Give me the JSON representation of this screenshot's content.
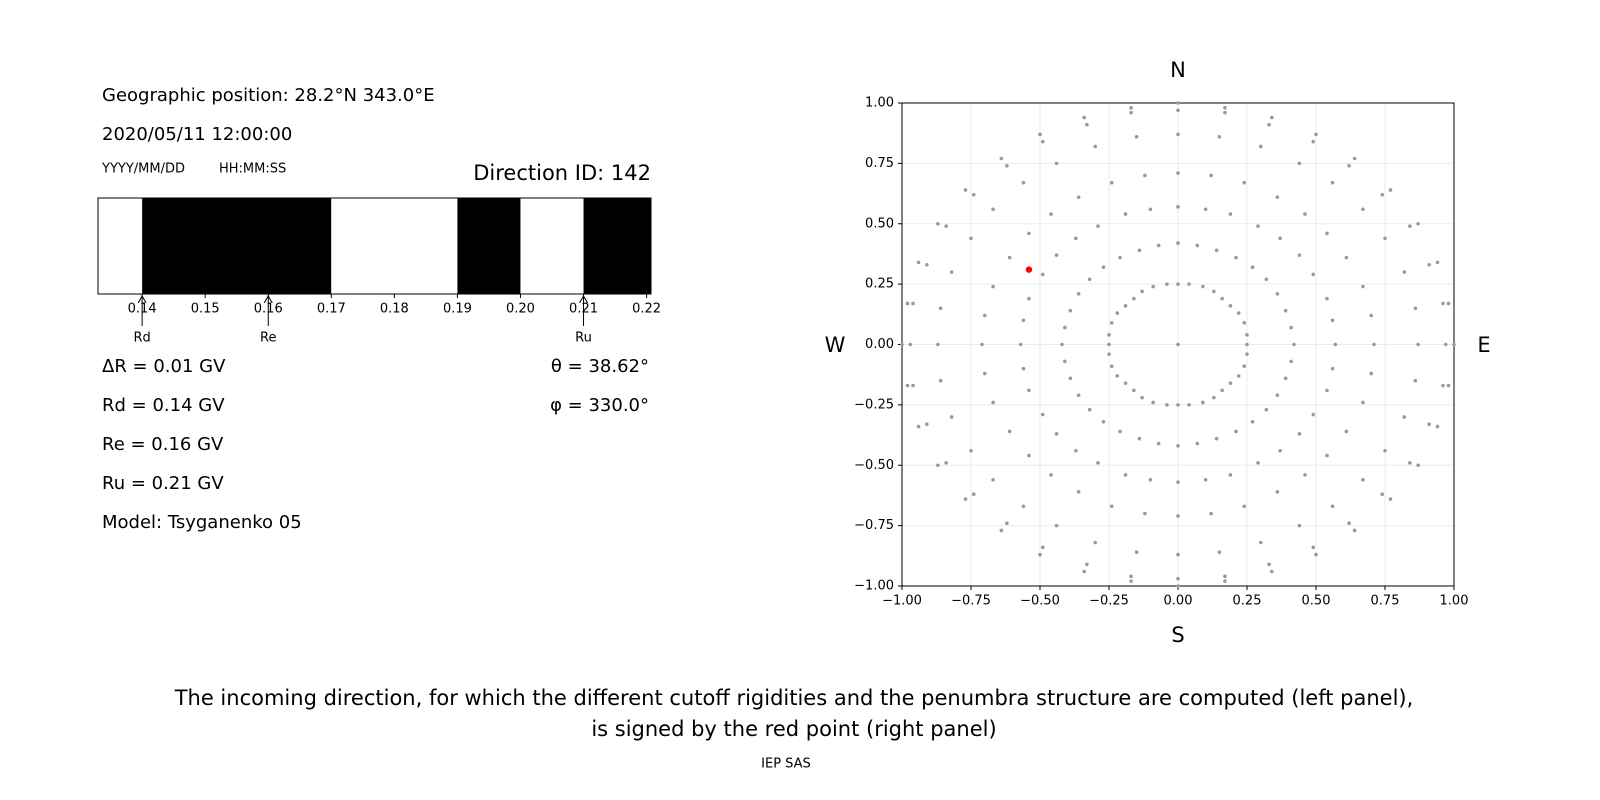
{
  "panel": {
    "position": "Geographic position: 28.2°N 343.0°E",
    "datetime": "2020/05/11 12:00:00",
    "date_format": "YYYY/MM/DD",
    "time_format": "HH:MM:SS",
    "direction": "Direction ID: 142",
    "delta_r": "ΔR = 0.01 GV",
    "rd": "Rd = 0.14 GV",
    "re": "Re = 0.16 GV",
    "ru": "Ru = 0.21 GV",
    "model": "Model: Tsyganenko 05",
    "theta": "θ = 38.62°",
    "phi": "φ = 330.0°"
  },
  "caption": [
    "The incoming direction, for which the different cutoff rigidities and the penumbra structure are computed (left panel),",
    "is signed by the red point (right panel)"
  ],
  "credit": "IEP SAS",
  "chart_data": [
    {
      "type": "strip",
      "bins": [
        0.133,
        0.14,
        0.17,
        0.19,
        0.2,
        0.21,
        0.2207
      ],
      "colors": [
        "#ffffff",
        "#000000",
        "#ffffff",
        "#000000",
        "#ffffff",
        "#000000"
      ],
      "xlim": [
        0.133,
        0.2207
      ],
      "xticks": [
        0.14,
        0.15,
        0.16,
        0.17,
        0.18,
        0.19,
        {
          "value": 0.2,
          "label": "0.20"
        },
        0.21,
        0.22
      ],
      "markers": [
        {
          "label": "Rd",
          "value": 0.14
        },
        {
          "label": "Re",
          "value": 0.16
        },
        {
          "label": "Ru",
          "value": 0.21
        }
      ]
    },
    {
      "type": "scatter",
      "xlim": [
        -1,
        1
      ],
      "ylim": [
        -1,
        1
      ],
      "grid": true,
      "xticks": [
        {
          "value": -1,
          "label": "−1.00"
        },
        {
          "value": -0.75,
          "label": "−0.75"
        },
        {
          "value": -0.5,
          "label": "−0.50"
        },
        {
          "value": -0.25,
          "label": "−0.25"
        },
        {
          "value": 0,
          "label": "0.00"
        },
        {
          "value": 0.25,
          "label": "0.25"
        },
        {
          "value": 0.5,
          "label": "0.50"
        },
        {
          "value": 0.75,
          "label": "0.75"
        },
        {
          "value": 1,
          "label": "1.00"
        }
      ],
      "yticks": [
        {
          "value": -1,
          "label": "−1.00"
        },
        {
          "value": -0.75,
          "label": "−0.75"
        },
        {
          "value": -0.5,
          "label": "−0.50"
        },
        {
          "value": -0.25,
          "label": "−0.25"
        },
        {
          "value": 0,
          "label": "0.00"
        },
        {
          "value": 0.25,
          "label": "0.25"
        },
        {
          "value": 0.5,
          "label": "0.50"
        },
        {
          "value": 0.75,
          "label": "0.75"
        },
        {
          "value": 1,
          "label": "1.00"
        }
      ],
      "compass": {
        "north": "N",
        "south": "S",
        "west": "W",
        "east": "E"
      },
      "series": [
        {
          "color": "#999999",
          "x": [
            0
          ],
          "values": [
            0
          ]
        },
        {
          "color": "#999999",
          "x": [
            0,
            0.04,
            0.09,
            0.13,
            0.16,
            0.19,
            0.22,
            0.24,
            0.25,
            0.25,
            0.25,
            0.24,
            0.22,
            0.19,
            0.16,
            0.13,
            0.09,
            0.04,
            0,
            -0.04,
            -0.09,
            -0.13,
            -0.16,
            -0.19,
            -0.22,
            -0.24,
            -0.25,
            -0.25,
            -0.25,
            -0.24,
            -0.22,
            -0.19,
            -0.16,
            -0.13,
            -0.09,
            -0.04
          ],
          "values": [
            0.25,
            0.25,
            0.24,
            0.22,
            0.19,
            0.16,
            0.13,
            0.09,
            0.04,
            0,
            -0.04,
            -0.09,
            -0.13,
            -0.16,
            -0.19,
            -0.22,
            -0.24,
            -0.25,
            -0.25,
            -0.25,
            -0.24,
            -0.22,
            -0.19,
            -0.16,
            -0.13,
            -0.09,
            -0.04,
            0,
            0.04,
            0.09,
            0.13,
            0.16,
            0.19,
            0.22,
            0.24,
            0.25
          ]
        },
        {
          "color": "#999999",
          "x": [
            0,
            0.07,
            0.14,
            0.21,
            0.27,
            0.32,
            0.36,
            0.39,
            0.41,
            0.42,
            0.41,
            0.39,
            0.36,
            0.32,
            0.27,
            0.21,
            0.14,
            0.07,
            0,
            -0.07,
            -0.14,
            -0.21,
            -0.27,
            -0.32,
            -0.36,
            -0.39,
            -0.41,
            -0.42,
            -0.41,
            -0.39,
            -0.36,
            -0.32,
            -0.27,
            -0.21,
            -0.14,
            -0.07
          ],
          "values": [
            0.42,
            0.41,
            0.39,
            0.36,
            0.32,
            0.27,
            0.21,
            0.14,
            0.07,
            0,
            -0.07,
            -0.14,
            -0.21,
            -0.27,
            -0.32,
            -0.36,
            -0.39,
            -0.41,
            -0.42,
            -0.41,
            -0.39,
            -0.36,
            -0.32,
            -0.27,
            -0.21,
            -0.14,
            -0.07,
            0,
            0.07,
            0.14,
            0.21,
            0.27,
            0.32,
            0.36,
            0.39,
            0.41
          ]
        },
        {
          "color": "#999999",
          "x": [
            0,
            0.1,
            0.19,
            0.29,
            0.37,
            0.44,
            0.49,
            0.54,
            0.56,
            0.57,
            0.56,
            0.54,
            0.49,
            0.44,
            0.37,
            0.29,
            0.19,
            0.1,
            0,
            -0.1,
            -0.19,
            -0.29,
            -0.37,
            -0.44,
            -0.49,
            -0.54,
            -0.56,
            -0.57,
            -0.56,
            -0.54,
            -0.49,
            -0.44,
            -0.37,
            -0.29,
            -0.19,
            -0.1
          ],
          "values": [
            0.57,
            0.56,
            0.54,
            0.49,
            0.44,
            0.37,
            0.29,
            0.19,
            0.1,
            0,
            -0.1,
            -0.19,
            -0.29,
            -0.37,
            -0.44,
            -0.49,
            -0.54,
            -0.56,
            -0.57,
            -0.56,
            -0.54,
            -0.49,
            -0.44,
            -0.37,
            -0.29,
            -0.19,
            -0.1,
            0,
            0.1,
            0.19,
            0.29,
            0.37,
            0.44,
            0.49,
            0.54,
            0.56
          ]
        },
        {
          "color": "#999999",
          "x": [
            0,
            0.12,
            0.24,
            0.36,
            0.46,
            0.54,
            0.61,
            0.67,
            0.7,
            0.71,
            0.7,
            0.67,
            0.61,
            0.54,
            0.46,
            0.36,
            0.24,
            0.12,
            0,
            -0.12,
            -0.24,
            -0.36,
            -0.46,
            -0.54,
            -0.61,
            -0.67,
            -0.7,
            -0.71,
            -0.7,
            -0.67,
            -0.61,
            -0.54,
            -0.46,
            -0.36,
            -0.24,
            -0.12
          ],
          "values": [
            0.71,
            0.7,
            0.67,
            0.61,
            0.54,
            0.46,
            0.36,
            0.24,
            0.12,
            0,
            -0.12,
            -0.24,
            -0.36,
            -0.46,
            -0.54,
            -0.61,
            -0.67,
            -0.7,
            -0.71,
            -0.7,
            -0.67,
            -0.61,
            -0.54,
            -0.46,
            -0.36,
            -0.24,
            -0.12,
            0,
            0.12,
            0.24,
            0.36,
            0.46,
            0.54,
            0.61,
            0.67,
            0.7
          ]
        },
        {
          "color": "#999999",
          "x": [
            0,
            0.15,
            0.3,
            0.44,
            0.56,
            0.67,
            0.75,
            0.82,
            0.86,
            0.87,
            0.86,
            0.82,
            0.75,
            0.67,
            0.56,
            0.44,
            0.3,
            0.15,
            0,
            -0.15,
            -0.3,
            -0.44,
            -0.56,
            -0.67,
            -0.75,
            -0.82,
            -0.86,
            -0.87,
            -0.86,
            -0.82,
            -0.75,
            -0.67,
            -0.56,
            -0.44,
            -0.3,
            -0.15
          ],
          "values": [
            0.87,
            0.86,
            0.82,
            0.75,
            0.67,
            0.56,
            0.44,
            0.3,
            0.15,
            0,
            -0.15,
            -0.3,
            -0.44,
            -0.56,
            -0.67,
            -0.75,
            -0.82,
            -0.86,
            -0.87,
            -0.86,
            -0.82,
            -0.75,
            -0.67,
            -0.56,
            -0.44,
            -0.3,
            -0.15,
            0,
            0.15,
            0.3,
            0.44,
            0.56,
            0.67,
            0.75,
            0.82,
            0.86
          ]
        },
        {
          "color": "#999999",
          "x": [
            0,
            0.17,
            0.33,
            0.49,
            0.62,
            0.74,
            0.84,
            0.91,
            0.96,
            0.97,
            0.96,
            0.91,
            0.84,
            0.74,
            0.62,
            0.49,
            0.33,
            0.17,
            0,
            -0.17,
            -0.33,
            -0.49,
            -0.62,
            -0.74,
            -0.84,
            -0.91,
            -0.96,
            -0.97,
            -0.96,
            -0.91,
            -0.84,
            -0.74,
            -0.62,
            -0.49,
            -0.33,
            -0.17
          ],
          "values": [
            0.97,
            0.96,
            0.91,
            0.84,
            0.74,
            0.62,
            0.49,
            0.33,
            0.17,
            0,
            -0.17,
            -0.33,
            -0.49,
            -0.62,
            -0.74,
            -0.84,
            -0.91,
            -0.96,
            -0.97,
            -0.96,
            -0.91,
            -0.84,
            -0.74,
            -0.62,
            -0.49,
            -0.33,
            -0.17,
            0,
            0.17,
            0.33,
            0.49,
            0.62,
            0.74,
            0.84,
            0.91,
            0.96
          ]
        },
        {
          "color": "#999999",
          "x": [
            0,
            0.17,
            0.34,
            0.5,
            0.64,
            0.77,
            0.87,
            0.94,
            0.98,
            1,
            0.98,
            0.94,
            0.87,
            0.77,
            0.64,
            0.5,
            0.34,
            0.17,
            0,
            -0.17,
            -0.34,
            -0.5,
            -0.64,
            -0.77,
            -0.87,
            -0.94,
            -0.98,
            -1,
            -0.98,
            -0.94,
            -0.87,
            -0.77,
            -0.64,
            -0.5,
            -0.34,
            -0.17
          ],
          "values": [
            1,
            0.98,
            0.94,
            0.87,
            0.77,
            0.64,
            0.5,
            0.34,
            0.17,
            0,
            -0.17,
            -0.34,
            -0.5,
            -0.64,
            -0.77,
            -0.87,
            -0.94,
            -0.98,
            -1,
            -0.98,
            -0.94,
            -0.87,
            -0.77,
            -0.64,
            -0.5,
            -0.34,
            -0.17,
            0,
            0.17,
            0.34,
            0.5,
            0.64,
            0.77,
            0.87,
            0.94,
            0.98
          ]
        },
        {
          "color": "#ff0000",
          "x": [
            -0.54
          ],
          "values": [
            0.31
          ]
        }
      ]
    }
  ]
}
